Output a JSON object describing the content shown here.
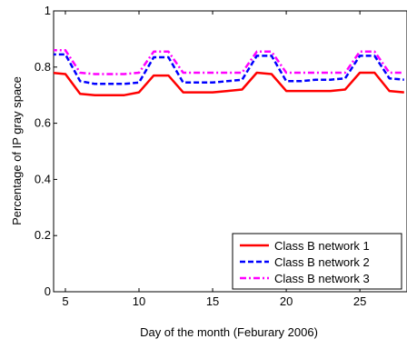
{
  "chart_data": {
    "type": "line",
    "title": "",
    "xlabel": "Day of the month (Feburary 2006)",
    "ylabel": "Percentage of IP gray space",
    "xlim": [
      4.2,
      28.2
    ],
    "ylim": [
      0,
      1
    ],
    "x_ticks": [
      5,
      10,
      15,
      20,
      25
    ],
    "y_ticks": [
      0,
      0.2,
      0.4,
      0.6,
      0.8,
      1
    ],
    "x_tick_labels": [
      "5",
      "10",
      "15",
      "20",
      "25"
    ],
    "y_tick_labels": [
      "0",
      "0.2",
      "0.4",
      "0.6",
      "0.8",
      "1"
    ],
    "grid": false,
    "legend_position": "bottom-right",
    "x": [
      4,
      5,
      6,
      7,
      8,
      9,
      10,
      11,
      12,
      13,
      14,
      15,
      16,
      17,
      18,
      19,
      20,
      21,
      22,
      23,
      24,
      25,
      26,
      27,
      28
    ],
    "series": [
      {
        "name": "Class B network 1",
        "color": "#ff0000",
        "style": "solid",
        "values": [
          0.78,
          0.775,
          0.705,
          0.7,
          0.7,
          0.7,
          0.71,
          0.77,
          0.77,
          0.71,
          0.71,
          0.71,
          0.715,
          0.72,
          0.78,
          0.775,
          0.715,
          0.715,
          0.715,
          0.715,
          0.72,
          0.78,
          0.78,
          0.715,
          0.71
        ]
      },
      {
        "name": "Class B network 2",
        "color": "#0000ff",
        "style": "dashed",
        "values": [
          0.845,
          0.845,
          0.75,
          0.74,
          0.74,
          0.74,
          0.745,
          0.835,
          0.835,
          0.745,
          0.745,
          0.745,
          0.75,
          0.755,
          0.84,
          0.84,
          0.75,
          0.75,
          0.755,
          0.755,
          0.76,
          0.84,
          0.84,
          0.76,
          0.755
        ]
      },
      {
        "name": "Class B network 3",
        "color": "#ff00ff",
        "style": "dashdot",
        "values": [
          0.86,
          0.86,
          0.78,
          0.775,
          0.775,
          0.775,
          0.78,
          0.855,
          0.855,
          0.78,
          0.78,
          0.78,
          0.78,
          0.78,
          0.855,
          0.855,
          0.78,
          0.78,
          0.78,
          0.78,
          0.78,
          0.855,
          0.855,
          0.78,
          0.78
        ]
      }
    ]
  }
}
